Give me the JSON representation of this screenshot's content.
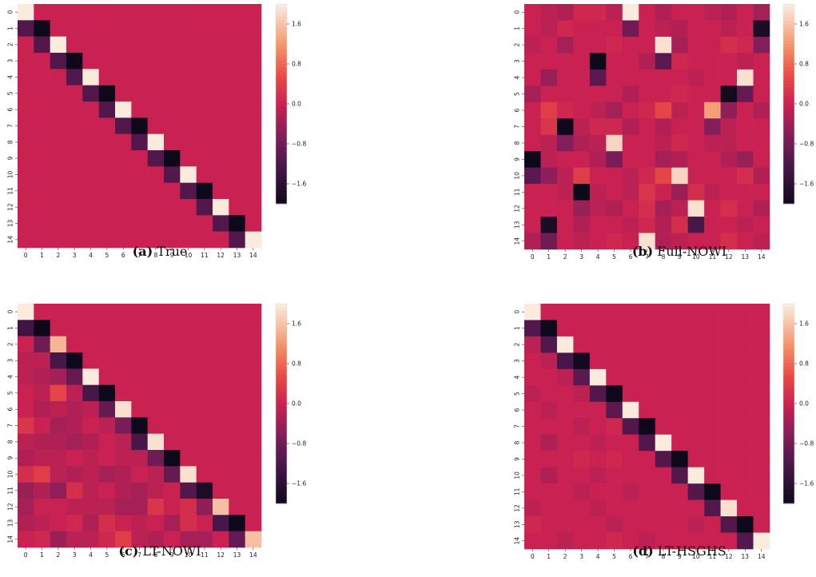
{
  "colorbar": {
    "ticks": [
      1.6,
      0.8,
      0.0,
      -0.8,
      -1.6
    ],
    "tick_labels": [
      "1.6",
      "0.8",
      "0.0",
      "−0.8",
      "−1.6"
    ],
    "vmin": -2.0,
    "vmax": 2.0
  },
  "chart_data": [
    {
      "type": "heatmap",
      "caption_label": "(a)",
      "caption_text": "True",
      "x_labels": [
        "0",
        "1",
        "2",
        "3",
        "4",
        "5",
        "6",
        "7",
        "8",
        "9",
        "10",
        "11",
        "12",
        "13",
        "14"
      ],
      "y_labels": [
        "0",
        "1",
        "2",
        "3",
        "4",
        "5",
        "6",
        "7",
        "8",
        "9",
        "10",
        "11",
        "12",
        "13",
        "14"
      ],
      "values": [
        [
          2.0,
          0,
          0,
          0,
          0,
          0,
          0,
          0,
          0,
          0,
          0,
          0,
          0,
          0,
          0
        ],
        [
          -1.1,
          -2.0,
          0,
          0,
          0,
          0,
          0,
          0,
          0,
          0,
          0,
          0,
          0,
          0,
          0
        ],
        [
          0,
          -1.1,
          2.0,
          0,
          0,
          0,
          0,
          0,
          0,
          0,
          0,
          0,
          0,
          0,
          0
        ],
        [
          0,
          0,
          -1.1,
          -2.0,
          0,
          0,
          0,
          0,
          0,
          0,
          0,
          0,
          0,
          0,
          0
        ],
        [
          0,
          0,
          0,
          -1.1,
          2.0,
          0,
          0,
          0,
          0,
          0,
          0,
          0,
          0,
          0,
          0
        ],
        [
          0,
          0,
          0,
          0,
          -1.1,
          -2.0,
          0,
          0,
          0,
          0,
          0,
          0,
          0,
          0,
          0
        ],
        [
          0,
          0,
          0,
          0,
          0,
          -1.1,
          2.0,
          0,
          0,
          0,
          0,
          0,
          0,
          0,
          0
        ],
        [
          0,
          0,
          0,
          0,
          0,
          0,
          -1.1,
          -2.0,
          0,
          0,
          0,
          0,
          0,
          0,
          0
        ],
        [
          0,
          0,
          0,
          0,
          0,
          0,
          0,
          -1.1,
          2.0,
          0,
          0,
          0,
          0,
          0,
          0
        ],
        [
          0,
          0,
          0,
          0,
          0,
          0,
          0,
          0,
          -1.1,
          -2.0,
          0,
          0,
          0,
          0,
          0
        ],
        [
          0,
          0,
          0,
          0,
          0,
          0,
          0,
          0,
          0,
          -1.1,
          2.0,
          0,
          0,
          0,
          0
        ],
        [
          0,
          0,
          0,
          0,
          0,
          0,
          0,
          0,
          0,
          0,
          -1.1,
          -2.0,
          0,
          0,
          0
        ],
        [
          0,
          0,
          0,
          0,
          0,
          0,
          0,
          0,
          0,
          0,
          0,
          -1.1,
          2.0,
          0,
          0
        ],
        [
          0,
          0,
          0,
          0,
          0,
          0,
          0,
          0,
          0,
          0,
          0,
          0,
          -1.1,
          -2.0,
          0
        ],
        [
          0,
          0,
          0,
          0,
          0,
          0,
          0,
          0,
          0,
          0,
          0,
          0,
          0,
          -1.1,
          2.0
        ]
      ]
    },
    {
      "type": "heatmap",
      "caption_label": "(b)",
      "caption_text": "Full-NOWI",
      "x_labels": [
        "0",
        "1",
        "2",
        "3",
        "4",
        "5",
        "6",
        "7",
        "8",
        "9",
        "10",
        "11",
        "12",
        "13",
        "14"
      ],
      "y_labels": [
        "0",
        "1",
        "2",
        "3",
        "4",
        "5",
        "6",
        "7",
        "8",
        "9",
        "10",
        "11",
        "12",
        "13",
        "14"
      ],
      "values": [
        [
          0.0,
          -0.1,
          -0.2,
          0.1,
          0.1,
          -0.1,
          2.0,
          0.0,
          -0.2,
          0.0,
          0.0,
          -0.1,
          -0.2,
          0.0,
          -0.3
        ],
        [
          0.0,
          -0.1,
          0.1,
          0.0,
          0.0,
          0.0,
          -0.8,
          0.0,
          -0.1,
          -0.2,
          0.0,
          0.0,
          -0.1,
          0.0,
          -1.8
        ],
        [
          -0.1,
          0.0,
          -0.3,
          0.0,
          0.0,
          0.1,
          0.0,
          0.0,
          1.9,
          -0.3,
          0.0,
          0.0,
          0.2,
          0.1,
          -0.6
        ],
        [
          0.0,
          0.0,
          0.0,
          0.0,
          -2.0,
          0.0,
          0.0,
          -0.2,
          -1.0,
          0.1,
          0.0,
          0.0,
          0.0,
          -0.1,
          0.0
        ],
        [
          0.0,
          -0.4,
          0.0,
          0.0,
          -1.0,
          0.0,
          0.0,
          0.0,
          0.0,
          0.0,
          -0.1,
          0.0,
          0.0,
          1.9,
          0.0
        ],
        [
          -0.3,
          0.0,
          0.0,
          0.0,
          0.0,
          0.0,
          -0.2,
          0.0,
          0.0,
          0.1,
          0.0,
          0.0,
          -1.9,
          -0.9,
          0.0
        ],
        [
          0.0,
          0.4,
          0.1,
          0.0,
          -0.1,
          -0.3,
          0.0,
          0.1,
          0.5,
          -0.1,
          0.0,
          1.3,
          -0.5,
          0.0,
          -0.2
        ],
        [
          0.0,
          0.3,
          -2.0,
          -0.1,
          0.1,
          0.1,
          -0.2,
          0.0,
          -0.2,
          0.0,
          0.0,
          -0.6,
          -0.1,
          0.0,
          0.0
        ],
        [
          0.0,
          -0.1,
          -0.6,
          -0.2,
          -0.1,
          1.8,
          0.0,
          0.0,
          -0.1,
          0.1,
          0.0,
          -0.1,
          -0.1,
          0.0,
          0.0
        ],
        [
          -2.0,
          -0.1,
          0.0,
          0.0,
          -0.2,
          -0.7,
          0.0,
          0.0,
          -0.3,
          -0.2,
          0.0,
          0.0,
          -0.2,
          -0.4,
          0.0
        ],
        [
          -1.0,
          -0.5,
          -0.1,
          0.4,
          0.0,
          0.0,
          -0.1,
          0.1,
          0.5,
          1.8,
          0.0,
          0.0,
          0.0,
          0.2,
          -0.2
        ],
        [
          0.0,
          0.0,
          -0.1,
          -2.0,
          -0.1,
          0.0,
          -0.1,
          0.3,
          0.0,
          -0.4,
          0.2,
          -0.1,
          0.0,
          0.0,
          0.0
        ],
        [
          0.0,
          0.0,
          0.0,
          -0.4,
          -0.1,
          -0.2,
          0.0,
          0.2,
          -0.3,
          -0.1,
          1.9,
          0.0,
          0.2,
          0.0,
          -0.2
        ],
        [
          0.0,
          -1.8,
          0.0,
          -0.2,
          0.0,
          0.0,
          -0.1,
          0.1,
          -0.2,
          0.2,
          -1.2,
          0.0,
          0.0,
          -0.1,
          0.0
        ],
        [
          -0.2,
          -0.8,
          0.0,
          -0.1,
          0.0,
          0.1,
          0.0,
          1.9,
          -0.2,
          -0.1,
          0.0,
          0.0,
          0.2,
          0.0,
          -0.1
        ]
      ]
    },
    {
      "type": "heatmap",
      "caption_label": "(c)",
      "caption_text": "LT-NOWI",
      "x_labels": [
        "0",
        "1",
        "2",
        "3",
        "4",
        "5",
        "6",
        "7",
        "8",
        "9",
        "10",
        "11",
        "12",
        "13",
        "14"
      ],
      "y_labels": [
        "0",
        "1",
        "2",
        "3",
        "4",
        "5",
        "6",
        "7",
        "8",
        "9",
        "10",
        "11",
        "12",
        "13",
        "14"
      ],
      "values": [
        [
          2.0,
          0,
          0,
          0,
          0,
          0,
          0,
          0,
          0,
          0,
          0,
          0,
          0,
          0,
          0
        ],
        [
          -1.3,
          -2.0,
          0,
          0,
          0,
          0,
          0,
          0,
          0,
          0,
          0,
          0,
          0,
          0,
          0
        ],
        [
          0.0,
          -0.8,
          1.5,
          0,
          0,
          0,
          0,
          0,
          0,
          0,
          0,
          0,
          0,
          0,
          0
        ],
        [
          -0.1,
          -0.1,
          -1.2,
          -2.0,
          0,
          0,
          0,
          0,
          0,
          0,
          0,
          0,
          0,
          0,
          0
        ],
        [
          -0.1,
          -0.2,
          -0.3,
          -0.9,
          2.0,
          0,
          0,
          0,
          0,
          0,
          0,
          0,
          0,
          0,
          0
        ],
        [
          0.0,
          -0.1,
          0.5,
          -0.1,
          -1.2,
          -2.0,
          0,
          0,
          0,
          0,
          0,
          0,
          0,
          0,
          0
        ],
        [
          0.0,
          -0.2,
          -0.1,
          -0.2,
          -0.1,
          -0.9,
          1.9,
          0,
          0,
          0,
          0,
          0,
          0,
          0,
          0
        ],
        [
          0.3,
          0.0,
          -0.3,
          -0.2,
          0.0,
          -0.1,
          -0.7,
          -2.0,
          0,
          0,
          0,
          0,
          0,
          0,
          0
        ],
        [
          -0.1,
          -0.2,
          -0.2,
          -0.3,
          -0.2,
          0.0,
          -0.1,
          -1.2,
          1.9,
          0,
          0,
          0,
          0,
          0,
          0
        ],
        [
          -0.2,
          -0.1,
          -0.1,
          0.0,
          -0.1,
          0.0,
          -0.1,
          -0.1,
          -0.8,
          -2.0,
          0,
          0,
          0,
          0,
          0
        ],
        [
          0.2,
          0.4,
          -0.1,
          -0.2,
          -0.1,
          -0.3,
          -0.2,
          0.0,
          -0.1,
          -0.9,
          1.9,
          0,
          0,
          0,
          0
        ],
        [
          -0.4,
          -0.2,
          -0.5,
          0.2,
          -0.1,
          0.0,
          -0.2,
          -0.3,
          -0.1,
          0.0,
          -1.1,
          -1.8,
          0,
          0,
          0
        ],
        [
          -0.3,
          0.0,
          0.0,
          -0.1,
          -0.1,
          -0.1,
          -0.3,
          -0.3,
          0.3,
          0.0,
          0.2,
          -0.5,
          1.6,
          0,
          0
        ],
        [
          -0.2,
          -0.1,
          0.0,
          0.1,
          -0.2,
          0.2,
          0.0,
          -0.1,
          0.0,
          -0.3,
          0.2,
          0.0,
          -1.2,
          -2.0,
          0
        ],
        [
          0.0,
          0.1,
          -0.4,
          -0.1,
          -0.1,
          0.1,
          0.4,
          -0.1,
          -0.2,
          0.0,
          -0.3,
          -0.3,
          0.0,
          -0.9,
          1.6
        ]
      ]
    },
    {
      "type": "heatmap",
      "caption_label": "(d)",
      "caption_text": "LT-HSGHS",
      "x_labels": [
        "0",
        "1",
        "2",
        "3",
        "4",
        "5",
        "6",
        "7",
        "8",
        "9",
        "10",
        "11",
        "12",
        "13",
        "14"
      ],
      "y_labels": [
        "0",
        "1",
        "2",
        "3",
        "4",
        "5",
        "6",
        "7",
        "8",
        "9",
        "10",
        "11",
        "12",
        "13",
        "14"
      ],
      "values": [
        [
          2.0,
          0,
          0,
          0,
          0,
          0,
          0,
          0,
          0,
          0,
          0,
          0,
          0,
          0,
          0
        ],
        [
          -1.1,
          -2.0,
          0,
          0,
          0,
          0,
          0,
          0,
          0,
          0,
          0,
          0,
          0,
          0,
          0
        ],
        [
          -0.1,
          -1.1,
          2.0,
          0,
          0,
          0,
          0,
          0,
          0,
          0,
          0,
          0,
          0,
          0,
          0
        ],
        [
          0.0,
          -0.1,
          -1.2,
          -1.9,
          0,
          0,
          0,
          0,
          0,
          0,
          0,
          0,
          0,
          0,
          0
        ],
        [
          0.0,
          0.0,
          -0.1,
          -1.0,
          2.0,
          0,
          0,
          0,
          0,
          0,
          0,
          0,
          0,
          0,
          0
        ],
        [
          -0.1,
          0.0,
          0.0,
          -0.1,
          -1.1,
          -2.0,
          0,
          0,
          0,
          0,
          0,
          0,
          0,
          0,
          0
        ],
        [
          0.0,
          -0.1,
          0.0,
          0.0,
          0.0,
          -1.0,
          2.0,
          0,
          0,
          0,
          0,
          0,
          0,
          0,
          0
        ],
        [
          0.0,
          0.0,
          0.0,
          -0.1,
          0.0,
          0.1,
          -1.1,
          -2.0,
          0,
          0,
          0,
          0,
          0,
          0,
          0
        ],
        [
          0.0,
          -0.2,
          0.0,
          0.0,
          -0.1,
          0.0,
          0.0,
          -1.1,
          2.0,
          0,
          0,
          0,
          0,
          0,
          0
        ],
        [
          0.0,
          0.0,
          0.0,
          0.1,
          0.0,
          0.1,
          0.0,
          0.0,
          -1.1,
          -2.0,
          0,
          0,
          0,
          0,
          0
        ],
        [
          0.0,
          -0.2,
          0.0,
          0.0,
          -0.1,
          0.0,
          0.0,
          0.0,
          0.0,
          -1.1,
          2.0,
          0,
          0,
          0,
          0
        ],
        [
          0.0,
          0.0,
          0.0,
          -0.1,
          0.0,
          0.0,
          -0.1,
          0.0,
          0.0,
          0.0,
          -1.1,
          -2.0,
          0,
          0,
          0
        ],
        [
          -0.1,
          0.0,
          0.0,
          0.0,
          -0.1,
          0.0,
          0.0,
          0.0,
          0.0,
          0.0,
          0.0,
          -1.1,
          1.9,
          0,
          0
        ],
        [
          0.1,
          0.0,
          0.0,
          0.0,
          0.0,
          -0.1,
          0.0,
          0.0,
          0.0,
          0.0,
          -0.1,
          0.0,
          -1.1,
          -2.0,
          0
        ],
        [
          0.0,
          0.0,
          -0.1,
          0.0,
          0.0,
          0.1,
          0.0,
          -0.1,
          0.0,
          0.0,
          0.0,
          0.0,
          0.0,
          -1.1,
          2.0
        ]
      ]
    }
  ]
}
